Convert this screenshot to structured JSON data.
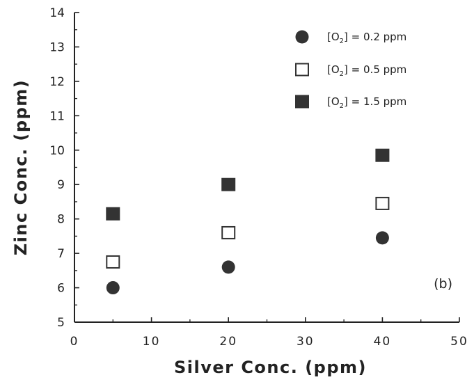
{
  "chart_data": {
    "type": "scatter",
    "xlabel": "Silver  Conc.  (ppm)",
    "ylabel": "Zinc  Conc.  (ppm)",
    "xlim": [
      0,
      50
    ],
    "ylim": [
      5,
      14
    ],
    "xticks": [
      0,
      10,
      20,
      30,
      40,
      50
    ],
    "yticks": [
      5,
      6,
      7,
      8,
      9,
      10,
      11,
      12,
      13,
      14
    ],
    "grid": false,
    "legend_position": "top-right",
    "annotation": "(b)",
    "series": [
      {
        "name_prefix": "[O",
        "name_sub": "2",
        "name_suffix": "] = 0.2 ppm",
        "marker": "filled-circle",
        "color": "#333333",
        "points": [
          [
            5,
            6.0
          ],
          [
            20,
            6.6
          ],
          [
            40,
            7.45
          ]
        ]
      },
      {
        "name_prefix": "[O",
        "name_sub": "2",
        "name_suffix": "] = 0.5 ppm",
        "marker": "open-square",
        "color": "#333333",
        "points": [
          [
            5,
            6.75
          ],
          [
            20,
            7.6
          ],
          [
            40,
            8.45
          ]
        ]
      },
      {
        "name_prefix": "[O",
        "name_sub": "2",
        "name_suffix": "] = 1.5 ppm",
        "marker": "filled-square",
        "color": "#333333",
        "points": [
          [
            5,
            8.15
          ],
          [
            20,
            9.0
          ],
          [
            40,
            9.85
          ]
        ]
      }
    ]
  }
}
